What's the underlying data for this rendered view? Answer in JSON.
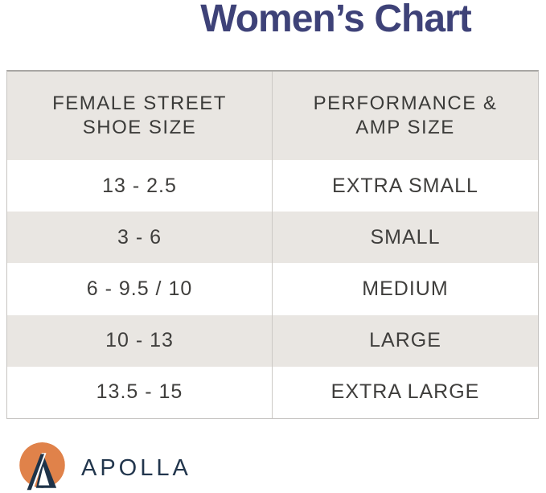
{
  "title": "Women’s Chart",
  "chart_data": {
    "type": "table",
    "title": "Women’s Chart",
    "columns": [
      "FEMALE STREET SHOE SIZE",
      "PERFORMANCE & AMP SIZE"
    ],
    "rows": [
      [
        "13 - 2.5",
        "EXTRA SMALL"
      ],
      [
        "3 - 6",
        "SMALL"
      ],
      [
        "6 - 9.5 / 10",
        "MEDIUM"
      ],
      [
        "10 - 13",
        "LARGE"
      ],
      [
        "13.5 - 15",
        "EXTRA LARGE"
      ]
    ],
    "layout_hints": {
      "header_background": "#E9E6E2",
      "alternating_row_background": "#E9E6E2",
      "striped_rows": [
        2,
        4
      ]
    }
  },
  "footer": {
    "brand": "APOLLA",
    "logo_icon": "apolla-mountain-a-icon"
  },
  "colors": {
    "title_text": "#3E4278",
    "cell_text": "#3F3E3C",
    "row_alt_bg": "#E9E6E2",
    "table_border": "#C6C4C1",
    "logo_orange": "#E0824A",
    "logo_navy": "#1E3349",
    "brand_text": "#22364D"
  }
}
